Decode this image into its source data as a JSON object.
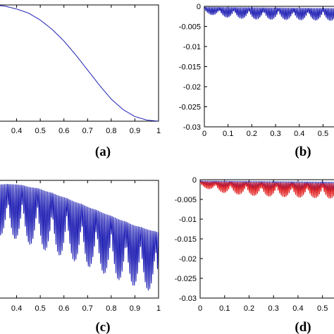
{
  "chart_data": [
    {
      "panel": "a",
      "panel_label": "(a)",
      "type": "line",
      "xlim": [
        0.3,
        1.0
      ],
      "x_ticks": [
        0.4,
        0.5,
        0.6,
        0.7,
        0.8,
        0.9,
        1
      ],
      "x_tick_labels": [
        "0.4",
        "0.5",
        "0.6",
        "0.7",
        "0.8",
        "0.9",
        "1"
      ],
      "grid": false,
      "series": [
        {
          "color": "#1f1fb4",
          "x": [
            0.3,
            0.35,
            0.4,
            0.45,
            0.5,
            0.55,
            0.6,
            0.65,
            0.7,
            0.75,
            0.8,
            0.85,
            0.9,
            0.95,
            1.0
          ],
          "y": [
            1.0,
            0.99,
            0.965,
            0.93,
            0.87,
            0.79,
            0.69,
            0.57,
            0.44,
            0.31,
            0.19,
            0.1,
            0.04,
            0.01,
            0.0
          ]
        }
      ]
    },
    {
      "panel": "b",
      "panel_label": "(b)",
      "type": "line",
      "xlim": [
        0,
        0.57
      ],
      "ylim": [
        -0.03,
        0
      ],
      "x_ticks": [
        0,
        0.1,
        0.2,
        0.3,
        0.4,
        0.5
      ],
      "x_tick_labels": [
        "0",
        "0.1",
        "0.2",
        "0.3",
        "0.4",
        "0.5"
      ],
      "y_ticks": [
        0,
        -0.005,
        -0.01,
        -0.015,
        -0.02,
        -0.025,
        -0.03
      ],
      "y_tick_labels": [
        "0",
        "-0.005",
        "-0.01",
        "-0.015",
        "-0.02",
        "-0.025",
        "-0.03"
      ],
      "grid": false,
      "series": [
        {
          "color": "#1f1fb4",
          "pattern": "oscillating",
          "x_range": [
            0,
            0.57
          ],
          "upper": {
            "x": [
              0,
              0.57
            ],
            "y": [
              -0.0002,
              -0.0005
            ]
          },
          "lower": {
            "x": [
              0,
              0.1,
              0.2,
              0.3,
              0.4,
              0.5,
              0.57
            ],
            "y": [
              -0.0018,
              -0.0028,
              -0.0032,
              -0.0033,
              -0.0034,
              -0.0035,
              -0.0036
            ]
          },
          "scallop_period": 0.0625,
          "oscillation_period": 0.0065
        }
      ]
    },
    {
      "panel": "c",
      "panel_label": "(c)",
      "type": "line",
      "xlim": [
        0.3,
        1.0
      ],
      "x_ticks": [
        0.4,
        0.5,
        0.6,
        0.7,
        0.8,
        0.9,
        1
      ],
      "x_tick_labels": [
        "0.4",
        "0.5",
        "0.6",
        "0.7",
        "0.8",
        "0.9",
        "1"
      ],
      "grid": false,
      "series": [
        {
          "color": "#1f1fb4",
          "pattern": "oscillating",
          "x_range": [
            0.3,
            1.0
          ],
          "upper": {
            "x": [
              0.3,
              0.4,
              0.5,
              0.6,
              0.7,
              0.8,
              0.9,
              1.0
            ],
            "y": [
              0.97,
              0.97,
              0.93,
              0.86,
              0.78,
              0.7,
              0.62,
              0.56
            ]
          },
          "lower": {
            "x": [
              0.3,
              0.4,
              0.5,
              0.6,
              0.7,
              0.8,
              0.9,
              1.0
            ],
            "y": [
              0.55,
              0.5,
              0.42,
              0.35,
              0.27,
              0.18,
              0.1,
              0.04
            ]
          },
          "scallop_period": 0.0625,
          "oscillation_period": 0.0065
        }
      ]
    },
    {
      "panel": "d",
      "panel_label": "(d)",
      "type": "line",
      "xlim": [
        0,
        0.57
      ],
      "ylim": [
        -0.03,
        0
      ],
      "x_ticks": [
        0,
        0.1,
        0.2,
        0.3,
        0.4,
        0.5
      ],
      "x_tick_labels": [
        "0",
        "0.1",
        "0.2",
        "0.3",
        "0.4",
        "0.5"
      ],
      "y_ticks": [
        0,
        -0.005,
        -0.01,
        -0.015,
        -0.02,
        -0.025,
        -0.03
      ],
      "y_tick_labels": [
        "0",
        "-0.005",
        "-0.01",
        "-0.015",
        "-0.02",
        "-0.025",
        "-0.03"
      ],
      "grid": false,
      "series": [
        {
          "color": "#1f1fb4",
          "pattern": "oscillating",
          "x_range": [
            0,
            0.57
          ],
          "upper": {
            "x": [
              0,
              0.57
            ],
            "y": [
              -0.0003,
              -0.0006
            ]
          },
          "lower": {
            "x": [
              0,
              0.1,
              0.2,
              0.3,
              0.4,
              0.5,
              0.57
            ],
            "y": [
              -0.0012,
              -0.002,
              -0.0024,
              -0.0026,
              -0.0028,
              -0.003,
              -0.0031
            ]
          },
          "scallop_period": 0.0625,
          "oscillation_period": 0.0065
        },
        {
          "color": "#e01f1f",
          "pattern": "oscillating",
          "x_range": [
            0,
            0.57
          ],
          "upper": {
            "x": [
              0,
              0.57
            ],
            "y": [
              -0.0005,
              -0.001
            ]
          },
          "lower": {
            "x": [
              0,
              0.1,
              0.2,
              0.3,
              0.4,
              0.5,
              0.57
            ],
            "y": [
              -0.0018,
              -0.0034,
              -0.004,
              -0.0043,
              -0.0045,
              -0.0047,
              -0.0048
            ]
          },
          "scallop_period": 0.0625,
          "oscillation_period": 0.0065
        }
      ]
    }
  ]
}
